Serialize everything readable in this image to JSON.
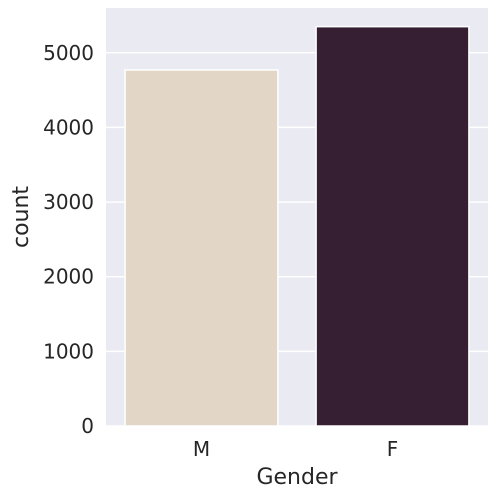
{
  "chart_data": {
    "type": "bar",
    "title": "",
    "xlabel": "Gender",
    "ylabel": "count",
    "categories": [
      "M",
      "F"
    ],
    "values": [
      4770,
      5350
    ],
    "ylim": [
      0,
      5600
    ],
    "yticks": [
      0,
      1000,
      2000,
      3000,
      4000,
      5000
    ],
    "grid": true,
    "colors": [
      "#e2d6c7",
      "#361f33"
    ],
    "background": "#eaeaf2"
  }
}
